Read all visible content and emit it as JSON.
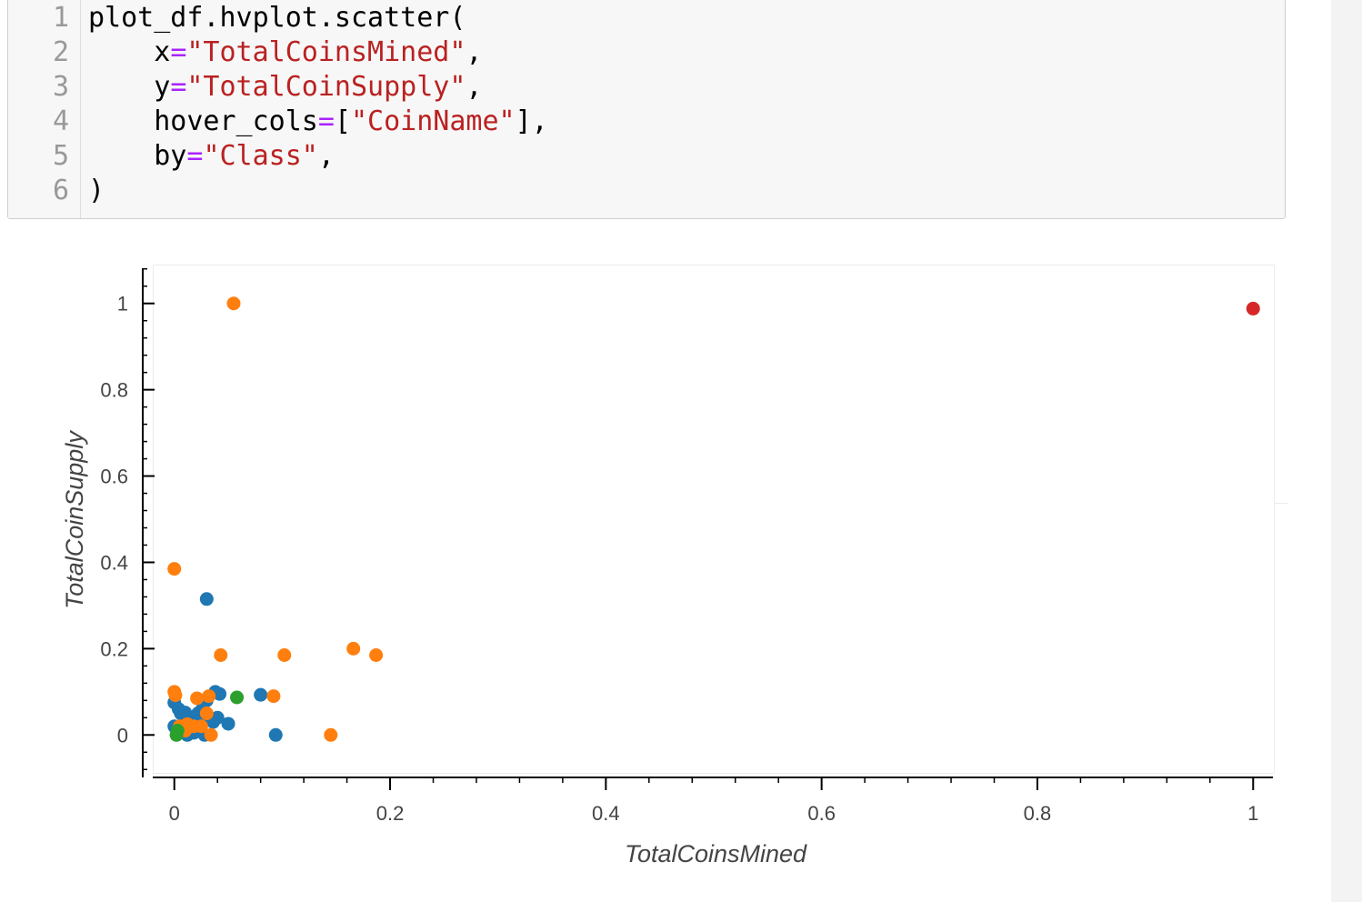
{
  "code_cell": {
    "lines": [
      {
        "no": "1",
        "tokens": [
          {
            "t": "plot_df.hvplot.scatter(",
            "c": "plain"
          }
        ]
      },
      {
        "no": "2",
        "tokens": [
          {
            "t": "    x",
            "c": "plain"
          },
          {
            "t": "=",
            "c": "op"
          },
          {
            "t": "\"TotalCoinsMined\"",
            "c": "str"
          },
          {
            "t": ",",
            "c": "plain"
          }
        ]
      },
      {
        "no": "3",
        "tokens": [
          {
            "t": "    y",
            "c": "plain"
          },
          {
            "t": "=",
            "c": "op"
          },
          {
            "t": "\"TotalCoinSupply\"",
            "c": "str"
          },
          {
            "t": ",",
            "c": "plain"
          }
        ]
      },
      {
        "no": "4",
        "tokens": [
          {
            "t": "    hover_cols",
            "c": "plain"
          },
          {
            "t": "=",
            "c": "op"
          },
          {
            "t": "[",
            "c": "plain"
          },
          {
            "t": "\"CoinName\"",
            "c": "str"
          },
          {
            "t": "],",
            "c": "plain"
          }
        ]
      },
      {
        "no": "5",
        "tokens": [
          {
            "t": "    by",
            "c": "plain"
          },
          {
            "t": "=",
            "c": "op"
          },
          {
            "t": "\"Class\"",
            "c": "str"
          },
          {
            "t": ",",
            "c": "plain"
          }
        ]
      },
      {
        "no": "6",
        "tokens": [
          {
            "t": ")",
            "c": "plain"
          }
        ]
      }
    ]
  },
  "chart_data": {
    "type": "scatter",
    "xlabel": "TotalCoinsMined",
    "ylabel": "TotalCoinSupply",
    "xlim": [
      -0.02,
      1.02
    ],
    "ylim": [
      -0.09,
      1.09
    ],
    "xticks": [
      0,
      0.2,
      0.4,
      0.6,
      0.8,
      1
    ],
    "xtick_labels": [
      "0",
      "0.2",
      "0.4",
      "0.6",
      "0.8",
      "1"
    ],
    "yticks": [
      0,
      0.2,
      0.4,
      0.6,
      0.8,
      1
    ],
    "ytick_labels": [
      "0",
      "0.2",
      "0.4",
      "0.6",
      "0.8",
      "1"
    ],
    "grid": false,
    "legend": "none",
    "series": [
      {
        "color": "#1f77b4",
        "points": [
          [
            0.0,
            0.075
          ],
          [
            0.004,
            0.06
          ],
          [
            0.006,
            0.05
          ],
          [
            0.01,
            0.052
          ],
          [
            0.012,
            0.04
          ],
          [
            0.016,
            0.03
          ],
          [
            0.02,
            0.035
          ],
          [
            0.022,
            0.05
          ],
          [
            0.026,
            0.06
          ],
          [
            0.03,
            0.08
          ],
          [
            0.032,
            0.04
          ],
          [
            0.038,
            0.1
          ],
          [
            0.042,
            0.095
          ],
          [
            0.04,
            0.04
          ],
          [
            0.05,
            0.026
          ],
          [
            0.03,
            0.315
          ],
          [
            0.08,
            0.093
          ],
          [
            0.094,
            0.0
          ],
          [
            0.012,
            0.0
          ],
          [
            0.018,
            0.005
          ],
          [
            0.024,
            0.01
          ],
          [
            0.028,
            0.0
          ],
          [
            0.0,
            0.02
          ],
          [
            0.036,
            0.03
          ]
        ]
      },
      {
        "color": "#ff7f0e",
        "points": [
          [
            0.055,
            1.0
          ],
          [
            0.0,
            0.385
          ],
          [
            0.043,
            0.185
          ],
          [
            0.102,
            0.185
          ],
          [
            0.166,
            0.2
          ],
          [
            0.187,
            0.185
          ],
          [
            0.0,
            0.1
          ],
          [
            0.001,
            0.092
          ],
          [
            0.021,
            0.085
          ],
          [
            0.032,
            0.09
          ],
          [
            0.092,
            0.09
          ],
          [
            0.03,
            0.05
          ],
          [
            0.005,
            0.02
          ],
          [
            0.012,
            0.025
          ],
          [
            0.018,
            0.02
          ],
          [
            0.025,
            0.02
          ],
          [
            0.034,
            0.0
          ],
          [
            0.145,
            0.0
          ],
          [
            0.01,
            0.01
          ]
        ]
      },
      {
        "color": "#2ca02c",
        "points": [
          [
            0.058,
            0.087
          ],
          [
            0.002,
            0.0
          ],
          [
            0.003,
            0.01
          ]
        ]
      },
      {
        "color": "#d62728",
        "points": [
          [
            1.0,
            0.988
          ]
        ]
      }
    ]
  }
}
